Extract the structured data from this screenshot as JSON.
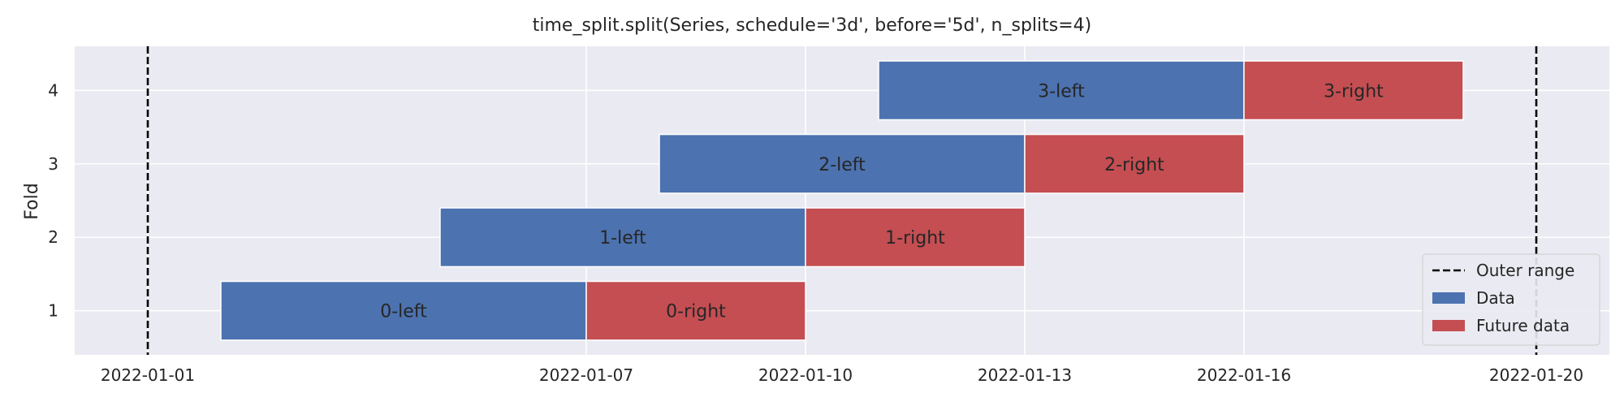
{
  "chart_data": {
    "type": "gantt",
    "title": "time_split.split(Series, schedule='3d', before='5d', n_splits=4)",
    "xlabel": "",
    "ylabel": "Fold",
    "x_axis": {
      "type": "date",
      "min": "2021-12-31",
      "max": "2022-01-21"
    },
    "x_ticks": [
      "2022-01-01",
      "2022-01-07",
      "2022-01-10",
      "2022-01-13",
      "2022-01-16",
      "2022-01-20"
    ],
    "y_ticks": [
      1,
      2,
      3,
      4
    ],
    "ylim": [
      0.4,
      4.6
    ],
    "grid": true,
    "background_color": "#EAEAF2",
    "outer_range": {
      "start": "2022-01-01",
      "end": "2022-01-20",
      "color": "#000000"
    },
    "series": [
      {
        "name": "Data",
        "color": "#4C72B0"
      },
      {
        "name": "Future data",
        "color": "#C44E52"
      }
    ],
    "folds": [
      {
        "fold": 1,
        "data": {
          "label": "0-left",
          "start": "2022-01-02",
          "end": "2022-01-07"
        },
        "future": {
          "label": "0-right",
          "start": "2022-01-07",
          "end": "2022-01-10"
        }
      },
      {
        "fold": 2,
        "data": {
          "label": "1-left",
          "start": "2022-01-05",
          "end": "2022-01-10"
        },
        "future": {
          "label": "1-right",
          "start": "2022-01-10",
          "end": "2022-01-13"
        }
      },
      {
        "fold": 3,
        "data": {
          "label": "2-left",
          "start": "2022-01-08",
          "end": "2022-01-13"
        },
        "future": {
          "label": "2-right",
          "start": "2022-01-13",
          "end": "2022-01-16"
        }
      },
      {
        "fold": 4,
        "data": {
          "label": "3-left",
          "start": "2022-01-11",
          "end": "2022-01-16"
        },
        "future": {
          "label": "3-right",
          "start": "2022-01-16",
          "end": "2022-01-19"
        }
      }
    ],
    "legend": {
      "placement": "lower-right",
      "entries": [
        {
          "label": "Outer range",
          "kind": "dashed-line"
        },
        {
          "label": "Data",
          "kind": "patch"
        },
        {
          "label": "Future data",
          "kind": "patch"
        }
      ]
    }
  }
}
